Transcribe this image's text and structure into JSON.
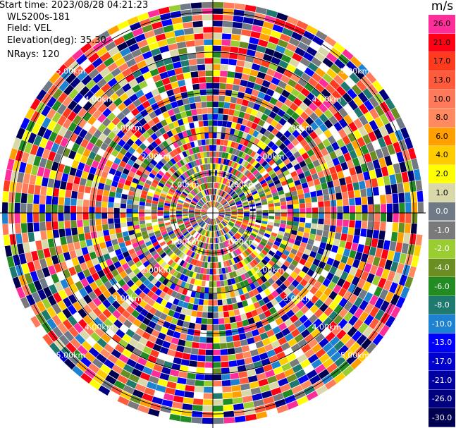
{
  "header": {
    "start_time": "Start time: 2023/08/28 04:21:23",
    "instrument": "WLS200s-181",
    "field": "Field: VEL",
    "elevation": "Elevation(deg): 35.30",
    "nrays": "NRays: 120"
  },
  "colorbar": {
    "unit": "m/s",
    "levels": [
      {
        "label": "26.0",
        "color": "#ff2d9a",
        "text": "#000000"
      },
      {
        "label": "21.0",
        "color": "#ff0014",
        "text": "#000000"
      },
      {
        "label": "17.0",
        "color": "#ff3b1e",
        "text": "#000000"
      },
      {
        "label": "13.0",
        "color": "#ff5a3a",
        "text": "#000000"
      },
      {
        "label": "10.0",
        "color": "#ff7a5a",
        "text": "#000000"
      },
      {
        "label": "8.0",
        "color": "#ff8a60",
        "text": "#000000"
      },
      {
        "label": "6.0",
        "color": "#ffa000",
        "text": "#000000"
      },
      {
        "label": "4.0",
        "color": "#ffcc00",
        "text": "#000000"
      },
      {
        "label": "2.0",
        "color": "#ffff00",
        "text": "#000000"
      },
      {
        "label": "1.0",
        "color": "#d8d8a8",
        "text": "#000000"
      },
      {
        "label": "0.0",
        "color": "#707a86",
        "text": "#ffffff"
      },
      {
        "label": "-1.0",
        "color": "#7a7a7a",
        "text": "#ffffff"
      },
      {
        "label": "-2.0",
        "color": "#9acd32",
        "text": "#ffffff"
      },
      {
        "label": "-4.0",
        "color": "#6b8e23",
        "text": "#ffffff"
      },
      {
        "label": "-6.0",
        "color": "#228b22",
        "text": "#ffffff"
      },
      {
        "label": "-8.0",
        "color": "#1e7a6e",
        "text": "#ffffff"
      },
      {
        "label": "-10.0",
        "color": "#1e82d2",
        "text": "#ffffff"
      },
      {
        "label": "-13.0",
        "color": "#0000ff",
        "text": "#ffffff"
      },
      {
        "label": "-17.0",
        "color": "#0000cd",
        "text": "#ffffff"
      },
      {
        "label": "-21.0",
        "color": "#0000a0",
        "text": "#ffffff"
      },
      {
        "label": "-26.0",
        "color": "#000080",
        "text": "#ffffff"
      },
      {
        "label": "-30.0",
        "color": "#000050",
        "text": "#ffffff"
      }
    ]
  },
  "chart_data": {
    "type": "heatmap",
    "title": "",
    "projection": "polar PPI",
    "field": "VEL",
    "unit": "m/s",
    "n_rays": 120,
    "elevation_deg": 35.3,
    "range_ring_labels": [
      "1.00km",
      "2.00km",
      "3.00km",
      "4.00km",
      "5.00km"
    ],
    "ring_spacing_km": 1.0,
    "max_range_km": 5.0,
    "value_range": [
      -30.0,
      26.0
    ],
    "colormap_note": "near-range velocities mostly slow (yellow/gray/green); far-range gates noisy across full scale"
  }
}
